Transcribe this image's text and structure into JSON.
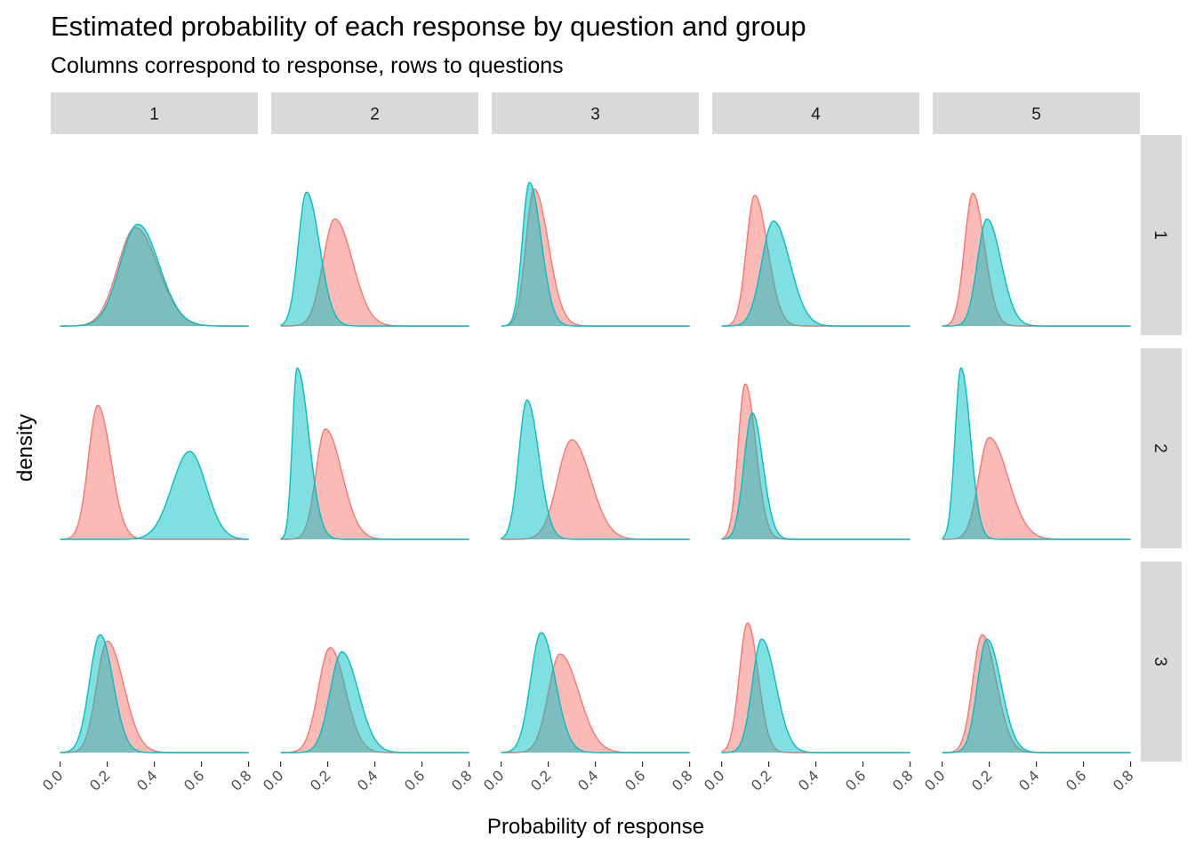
{
  "title": "Estimated probability of each response by question and group",
  "subtitle": "Columns correspond to response, rows to questions",
  "chart_data": {
    "type": "area",
    "title": "Estimated probability of each response by question and group",
    "subtitle": "Columns correspond to response, rows to questions",
    "xlabel": "Probability of response",
    "ylabel": "density",
    "xlim": [
      0,
      0.8
    ],
    "x_ticks": [
      "0.0",
      "0.2",
      "0.4",
      "0.6",
      "0.8"
    ],
    "column_facets": [
      "1",
      "2",
      "3",
      "4",
      "5"
    ],
    "row_facets": [
      "1",
      "2",
      "3"
    ],
    "series_colors": [
      "#F8766D",
      "#00BFC4"
    ],
    "grid": false,
    "legend": "none",
    "note": "",
    "panels": [
      {
        "question": "1",
        "response": "1",
        "series": [
          {
            "mode": 0.32,
            "peak": 0.92,
            "left_spread": 0.075,
            "right_spread": 0.095
          },
          {
            "mode": 0.33,
            "peak": 0.95,
            "left_spread": 0.075,
            "right_spread": 0.09
          }
        ]
      },
      {
        "question": "1",
        "response": "2",
        "series": [
          {
            "mode": 0.23,
            "peak": 1.0,
            "left_spread": 0.05,
            "right_spread": 0.075
          },
          {
            "mode": 0.11,
            "peak": 1.25,
            "left_spread": 0.035,
            "right_spread": 0.055
          }
        ]
      },
      {
        "question": "1",
        "response": "3",
        "series": [
          {
            "mode": 0.14,
            "peak": 1.28,
            "left_spread": 0.035,
            "right_spread": 0.06
          },
          {
            "mode": 0.12,
            "peak": 1.34,
            "left_spread": 0.03,
            "right_spread": 0.05
          }
        ]
      },
      {
        "question": "1",
        "response": "4",
        "series": [
          {
            "mode": 0.14,
            "peak": 1.22,
            "left_spread": 0.035,
            "right_spread": 0.055
          },
          {
            "mode": 0.22,
            "peak": 0.98,
            "left_spread": 0.05,
            "right_spread": 0.07
          }
        ]
      },
      {
        "question": "1",
        "response": "5",
        "series": [
          {
            "mode": 0.13,
            "peak": 1.24,
            "left_spread": 0.035,
            "right_spread": 0.05
          },
          {
            "mode": 0.19,
            "peak": 1.0,
            "left_spread": 0.04,
            "right_spread": 0.06
          }
        ]
      },
      {
        "question": "2",
        "response": "1",
        "series": [
          {
            "mode": 0.16,
            "peak": 1.25,
            "left_spread": 0.04,
            "right_spread": 0.055
          },
          {
            "mode": 0.55,
            "peak": 0.82,
            "left_spread": 0.075,
            "right_spread": 0.07
          }
        ]
      },
      {
        "question": "2",
        "response": "2",
        "series": [
          {
            "mode": 0.19,
            "peak": 1.03,
            "left_spread": 0.04,
            "right_spread": 0.07
          },
          {
            "mode": 0.07,
            "peak": 1.6,
            "left_spread": 0.02,
            "right_spread": 0.05
          }
        ]
      },
      {
        "question": "2",
        "response": "3",
        "series": [
          {
            "mode": 0.3,
            "peak": 0.93,
            "left_spread": 0.06,
            "right_spread": 0.08
          },
          {
            "mode": 0.11,
            "peak": 1.3,
            "left_spread": 0.035,
            "right_spread": 0.05
          }
        ]
      },
      {
        "question": "2",
        "response": "4",
        "series": [
          {
            "mode": 0.1,
            "peak": 1.45,
            "left_spread": 0.03,
            "right_spread": 0.045
          },
          {
            "mode": 0.13,
            "peak": 1.18,
            "left_spread": 0.035,
            "right_spread": 0.045
          }
        ]
      },
      {
        "question": "2",
        "response": "5",
        "series": [
          {
            "mode": 0.2,
            "peak": 0.95,
            "left_spread": 0.045,
            "right_spread": 0.08
          },
          {
            "mode": 0.08,
            "peak": 1.6,
            "left_spread": 0.025,
            "right_spread": 0.04
          }
        ]
      },
      {
        "question": "3",
        "response": "1",
        "series": [
          {
            "mode": 0.2,
            "peak": 1.04,
            "left_spread": 0.045,
            "right_spread": 0.07
          },
          {
            "mode": 0.17,
            "peak": 1.1,
            "left_spread": 0.045,
            "right_spread": 0.055
          }
        ]
      },
      {
        "question": "3",
        "response": "2",
        "series": [
          {
            "mode": 0.21,
            "peak": 0.98,
            "left_spread": 0.05,
            "right_spread": 0.065
          },
          {
            "mode": 0.26,
            "peak": 0.94,
            "left_spread": 0.05,
            "right_spread": 0.07
          }
        ]
      },
      {
        "question": "3",
        "response": "3",
        "series": [
          {
            "mode": 0.25,
            "peak": 0.92,
            "left_spread": 0.05,
            "right_spread": 0.08
          },
          {
            "mode": 0.17,
            "peak": 1.12,
            "left_spread": 0.045,
            "right_spread": 0.06
          }
        ]
      },
      {
        "question": "3",
        "response": "4",
        "series": [
          {
            "mode": 0.11,
            "peak": 1.21,
            "left_spread": 0.035,
            "right_spread": 0.045
          },
          {
            "mode": 0.17,
            "peak": 1.06,
            "left_spread": 0.04,
            "right_spread": 0.06
          }
        ]
      },
      {
        "question": "3",
        "response": "5",
        "series": [
          {
            "mode": 0.17,
            "peak": 1.1,
            "left_spread": 0.04,
            "right_spread": 0.06
          },
          {
            "mode": 0.19,
            "peak": 1.06,
            "left_spread": 0.04,
            "right_spread": 0.06
          }
        ]
      }
    ]
  }
}
